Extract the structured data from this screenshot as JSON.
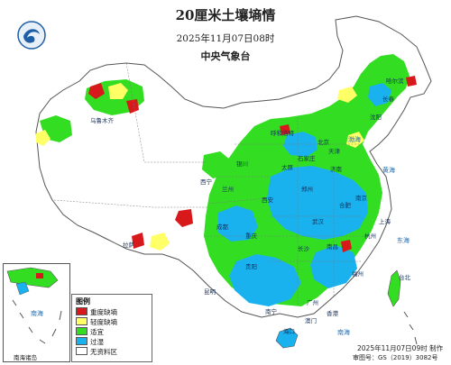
{
  "header": {
    "title": "20厘米土壤墒情",
    "subtitle": "2025年11月07日08时",
    "publisher": "中央气象台"
  },
  "legend": {
    "title": "图例",
    "items": [
      {
        "label": "重度缺墒",
        "color": "#d7191c"
      },
      {
        "label": "轻度缺墒",
        "color": "#ffff66"
      },
      {
        "label": "适宜",
        "color": "#33dd22"
      },
      {
        "label": "过湿",
        "color": "#1ab2ee"
      },
      {
        "label": "无资料区",
        "color": "#ffffff"
      }
    ]
  },
  "inset": {
    "label": "南海诸岛",
    "sea_label": "南海"
  },
  "footer": {
    "produced": "2025年11月07日09时 制作",
    "approval_code": "审图号：GS（2019）3082号"
  },
  "places": {
    "harbin": "哈尔滨",
    "changchun": "长春",
    "shenyang": "沈阳",
    "hohhot": "呼和浩特",
    "beijing": "北京",
    "tianjin": "天津",
    "shijiazhuang": "石家庄",
    "taiyuan": "太原",
    "jinan": "济南",
    "yinchuan": "银川",
    "xining": "西宁",
    "lanzhou": "兰州",
    "xian": "西安",
    "zhengzhou": "郑州",
    "hefei": "合肥",
    "nanjing": "南京",
    "shanghai": "上海",
    "wuhan": "武汉",
    "chengdu": "成都",
    "chongqing": "重庆",
    "hangzhou": "杭州",
    "changsha": "长沙",
    "nanchang": "南昌",
    "guiyang": "贵阳",
    "fuzhou": "福州",
    "kunming": "昆明",
    "nanning": "南宁",
    "guangzhou": "广州",
    "hongkong": "香港",
    "macau": "澳门",
    "taipei": "台北",
    "haikou": "海口",
    "lhasa": "拉萨",
    "urumqi": "乌鲁木齐"
  },
  "seas": {
    "bohai": "渤海",
    "yellow_sea": "黄海",
    "east_china_sea": "东海",
    "south_china_sea": "南海"
  },
  "colors": {
    "severe_drought": "#d7191c",
    "mild_drought": "#ffff66",
    "suitable": "#33dd22",
    "wet": "#1ab2ee",
    "no_data": "#ffffff",
    "border": "#555555"
  }
}
